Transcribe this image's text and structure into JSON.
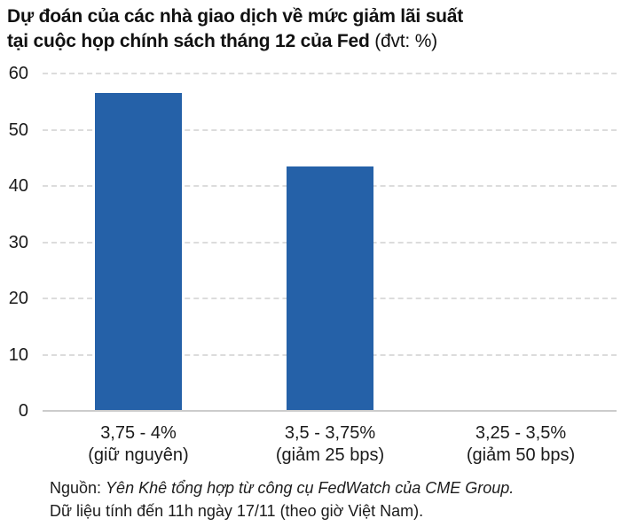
{
  "title": {
    "line1": "Dự đoán của các nhà giao dịch về mức giảm lãi suất",
    "line2_bold": "tại cuộc họp chính sách tháng 12 của Fed",
    "line2_unit": " (đvt: %)"
  },
  "footer": {
    "source_prefix": "Nguồn: ",
    "source_italic": "Yên Khê tổng hợp từ công cụ FedWatch của CME Group.",
    "data_note": "Dữ liệu tính đến 11h ngày 17/11 (theo giờ Việt Nam)."
  },
  "chart_data": {
    "type": "bar",
    "title": "Dự đoán của các nhà giao dịch về mức giảm lãi suất tại cuộc họp chính sách tháng 12 của Fed",
    "unit": "đvt: %",
    "categories": [
      [
        "3,75 - 4%",
        "(giữ nguyên)"
      ],
      [
        "3,5 - 3,75%",
        "(giảm 25 bps)"
      ],
      [
        "3,25 - 3,5%",
        "(giảm 50 bps)"
      ]
    ],
    "values": [
      56.5,
      43.5,
      0
    ],
    "ylim": [
      0,
      60
    ],
    "yticks": [
      0,
      10,
      20,
      30,
      40,
      50,
      60
    ],
    "grid": "horizontal-dashed",
    "legend": "none",
    "bar_color": "#2561a8",
    "gridline_color": "#dcdcdc",
    "axis_color": "#cccccc",
    "text_color": "#1a1a1a"
  }
}
